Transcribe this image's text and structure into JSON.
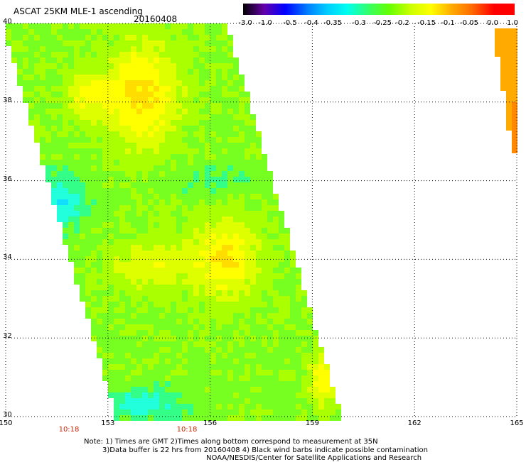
{
  "title": "ASCAT 25KM MLE-1 ascending",
  "date": "20160408",
  "colorbar": {
    "labels": [
      "-3.0",
      "-1.0",
      "-0.5",
      "-0.4",
      "-0.35",
      "-0.3",
      "-0.25",
      "-0.2",
      "-0.15",
      "-0.1",
      "-0.05",
      "0.0",
      "1.0"
    ],
    "colors": [
      "#000000",
      "#6600aa",
      "#0000ff",
      "#0077ff",
      "#00ccff",
      "#00ffee",
      "#33ff66",
      "#66ff00",
      "#ccff00",
      "#ffff00",
      "#ffaa00",
      "#ff6600",
      "#ff0000"
    ]
  },
  "lat_labels": [
    "40",
    "38",
    "36",
    "34",
    "32",
    "30"
  ],
  "lon_labels": [
    "150",
    "153",
    "156",
    "159",
    "162",
    "165"
  ],
  "times": [
    "10:18",
    "10:18"
  ],
  "notes": [
    "Note: 1) Times are GMT 2)Times along bottom correspond to measurement at 35N",
    "3)Data buffer is 22 hrs from 20160408 4) Black wind barbs indicate possible contamination",
    "NOAA/NESDIS/Center for Satellite Applications and Research"
  ],
  "chart_data": {
    "type": "heatmap",
    "xlim": [
      150,
      165
    ],
    "ylim": [
      30,
      40
    ],
    "x_ticks": [
      150,
      153,
      156,
      159,
      162,
      165
    ],
    "y_ticks": [
      30,
      32,
      34,
      36,
      38,
      40
    ],
    "grid": true,
    "colorbar_breaks": [
      -3.0,
      -1.0,
      -0.5,
      -0.4,
      -0.35,
      -0.3,
      -0.25,
      -0.2,
      -0.15,
      -0.1,
      -0.05,
      0.0,
      1.0
    ]
  }
}
